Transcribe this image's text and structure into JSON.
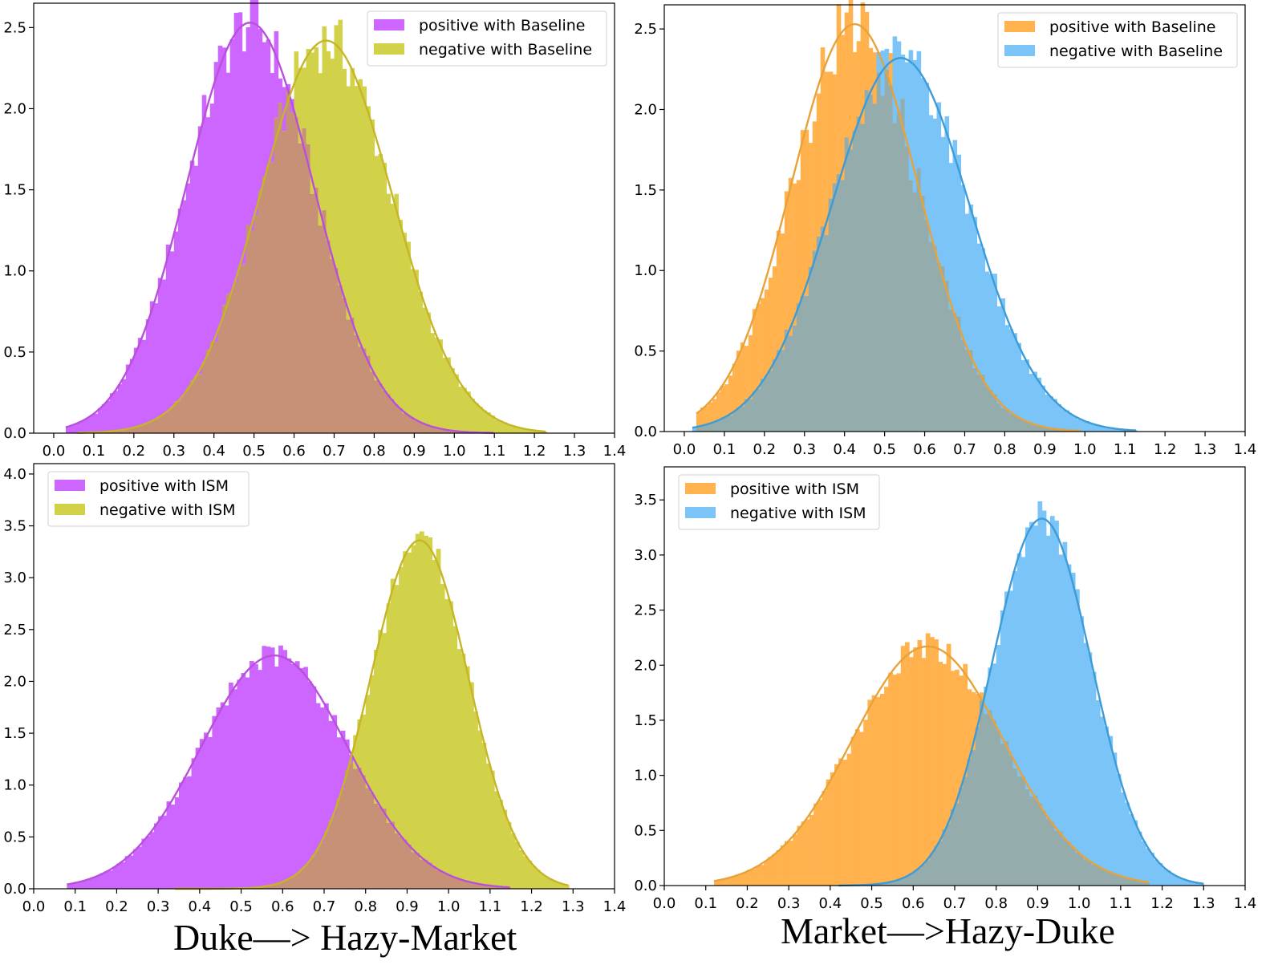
{
  "captions": {
    "left": "Duke—> Hazy-Market",
    "right": "Market—>Hazy-Duke"
  },
  "colors": {
    "positive_left": "#cc66ff",
    "negative_left": "#d2d24a",
    "curve_positive_left": "#b94fdb",
    "curve_negative_left": "#c6b526",
    "overlap_left": "#c69176",
    "positive_right": "#ffb24d",
    "negative_right": "#7ac4f8",
    "curve_positive_right": "#e8a23a",
    "curve_negative_right": "#3d9bd8",
    "overlap_right": "#94acac"
  },
  "chart_data": [
    {
      "type": "histogram",
      "panel": "top-left",
      "title": "",
      "xlabel": "",
      "ylabel": "",
      "xlim": [
        -0.05,
        1.4
      ],
      "ylim": [
        0,
        2.65
      ],
      "xticks": [
        "0.0",
        "0.1",
        "0.2",
        "0.3",
        "0.4",
        "0.5",
        "0.6",
        "0.7",
        "0.8",
        "0.9",
        "1.0",
        "1.1",
        "1.2",
        "1.3",
        "1.4"
      ],
      "yticks": [
        "0.0",
        "0.5",
        "1.0",
        "1.5",
        "2.0",
        "2.5"
      ],
      "legend_position": "top-right",
      "series": [
        {
          "name": "positive with Baseline",
          "color": "#cc66ff",
          "curve_color": "#b94fdb",
          "mean": 0.49,
          "std": 0.158,
          "peak": 2.53,
          "range": [
            0.03,
            1.1
          ],
          "hist_jitter": 0.08
        },
        {
          "name": "negative with Baseline",
          "color": "#d2d24a",
          "curve_color": "#c6b526",
          "mean": 0.68,
          "std": 0.165,
          "peak": 2.42,
          "range": [
            0.06,
            1.23
          ],
          "hist_jitter": 0.08
        }
      ]
    },
    {
      "type": "histogram",
      "panel": "top-right",
      "title": "",
      "xlabel": "",
      "ylabel": "",
      "xlim": [
        -0.05,
        1.4
      ],
      "ylim": [
        0,
        2.65
      ],
      "xticks": [
        "0.0",
        "0.1",
        "0.2",
        "0.3",
        "0.4",
        "0.5",
        "0.6",
        "0.7",
        "0.8",
        "0.9",
        "1.0",
        "1.1",
        "1.2",
        "1.3",
        "1.4"
      ],
      "yticks": [
        "0.0",
        "0.5",
        "1.0",
        "1.5",
        "2.0",
        "2.5"
      ],
      "legend_position": "top-right",
      "series": [
        {
          "name": "positive with Baseline",
          "color": "#ffb24d",
          "curve_color": "#e8a23a",
          "mean": 0.425,
          "std": 0.158,
          "peak": 2.53,
          "range": [
            0.03,
            0.99
          ],
          "hist_jitter": 0.1
        },
        {
          "name": "negative with Baseline",
          "color": "#7ac4f8",
          "curve_color": "#3d9bd8",
          "mean": 0.54,
          "std": 0.172,
          "peak": 2.32,
          "range": [
            0.02,
            1.13
          ],
          "hist_jitter": 0.08
        }
      ]
    },
    {
      "type": "histogram",
      "panel": "bottom-left",
      "title": "",
      "xlabel": "",
      "ylabel": "",
      "xlim": [
        0.0,
        1.4
      ],
      "ylim": [
        0,
        4.1
      ],
      "xticks": [
        "0.0",
        "0.1",
        "0.2",
        "0.3",
        "0.4",
        "0.5",
        "0.6",
        "0.7",
        "0.8",
        "0.9",
        "1.0",
        "1.1",
        "1.2",
        "1.3",
        "1.4"
      ],
      "yticks": [
        "0.0",
        "0.5",
        "1.0",
        "1.5",
        "2.0",
        "2.5",
        "3.0",
        "3.5",
        "4.0"
      ],
      "legend_position": "top-left",
      "series": [
        {
          "name": "positive with ISM",
          "color": "#cc66ff",
          "curve_color": "#b94fdb",
          "mean": 0.58,
          "std": 0.177,
          "peak": 2.25,
          "range": [
            0.08,
            1.15
          ],
          "hist_jitter": 0.06
        },
        {
          "name": "negative with ISM",
          "color": "#d2d24a",
          "curve_color": "#c6b526",
          "mean": 0.93,
          "std": 0.118,
          "peak": 3.36,
          "range": [
            0.34,
            1.29
          ],
          "hist_jitter": 0.05
        }
      ]
    },
    {
      "type": "histogram",
      "panel": "bottom-right",
      "title": "",
      "xlabel": "",
      "ylabel": "",
      "xlim": [
        0.0,
        1.4
      ],
      "ylim": [
        0,
        3.8
      ],
      "xticks": [
        "0.0",
        "0.1",
        "0.2",
        "0.3",
        "0.4",
        "0.5",
        "0.6",
        "0.7",
        "0.8",
        "0.9",
        "1.0",
        "1.1",
        "1.2",
        "1.3",
        "1.4"
      ],
      "yticks": [
        "0.0",
        "0.5",
        "1.0",
        "1.5",
        "2.0",
        "2.5",
        "3.0",
        "3.5"
      ],
      "legend_position": "top-left",
      "series": [
        {
          "name": "positive with ISM",
          "color": "#ffb24d",
          "curve_color": "#e8a23a",
          "mean": 0.635,
          "std": 0.183,
          "peak": 2.17,
          "range": [
            0.12,
            1.17
          ],
          "hist_jitter": 0.06
        },
        {
          "name": "negative with ISM",
          "color": "#7ac4f8",
          "curve_color": "#3d9bd8",
          "mean": 0.91,
          "std": 0.12,
          "peak": 3.33,
          "range": [
            0.42,
            1.3
          ],
          "hist_jitter": 0.05
        }
      ]
    }
  ]
}
